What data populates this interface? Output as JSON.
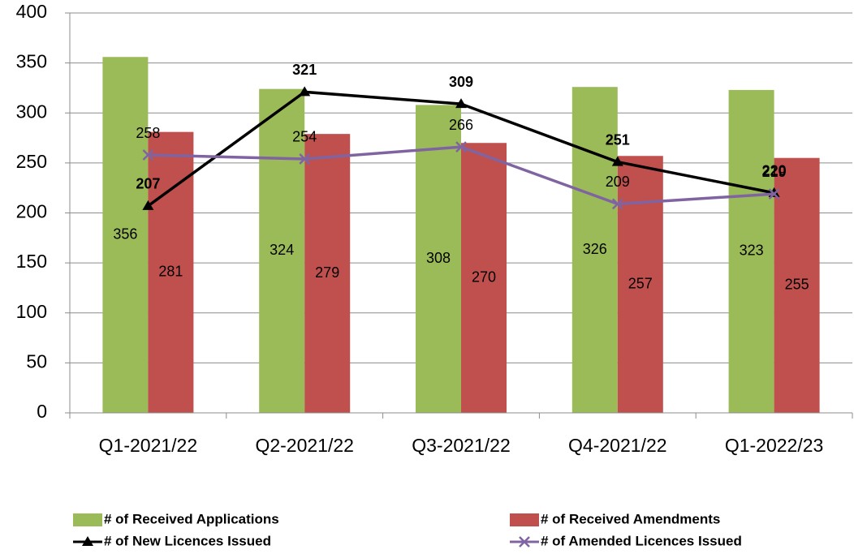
{
  "chart_data": {
    "type": "bar",
    "categories": [
      "Q1-2021/22",
      "Q2-2021/22",
      "Q3-2021/22",
      "Q4-2021/22",
      "Q1-2022/23"
    ],
    "series": [
      {
        "name": "# of Received Applications",
        "type": "bar",
        "color": "#9bbb59",
        "values": [
          356,
          324,
          308,
          326,
          323
        ]
      },
      {
        "name": "# of Received Amendments",
        "type": "bar",
        "color": "#c0504d",
        "values": [
          281,
          279,
          270,
          257,
          255
        ]
      },
      {
        "name": "# of New Licences Issued",
        "type": "line",
        "marker": "triangle",
        "color": "#000000",
        "values": [
          207,
          321,
          309,
          251,
          220
        ]
      },
      {
        "name": "# of Amended Licences Issued",
        "type": "line",
        "marker": "x",
        "color": "#8064a2",
        "values": [
          258,
          254,
          266,
          209,
          219
        ]
      }
    ],
    "ylim": [
      0,
      400
    ],
    "yticks": [
      0,
      50,
      100,
      150,
      200,
      250,
      300,
      350,
      400
    ],
    "grid": true,
    "legend": "bottom"
  }
}
